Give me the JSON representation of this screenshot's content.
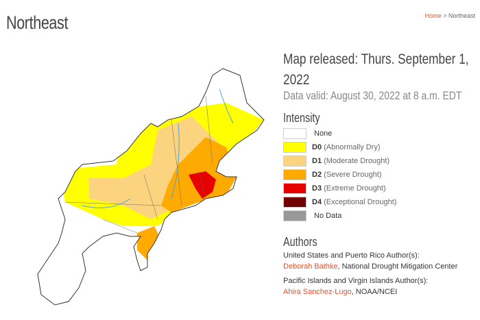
{
  "page_title": "Northeast",
  "breadcrumb": {
    "home": "Home",
    "sep": ">",
    "current": "Northeast"
  },
  "released": "Map released: Thurs. September 1, 2022",
  "valid": "Data valid: August 30, 2022 at 8 a.m. EDT",
  "intensity_heading": "Intensity",
  "legend": [
    {
      "code": "",
      "label": "None",
      "color": "#ffffff"
    },
    {
      "code": "D0",
      "label": "(Abnormally Dry)",
      "color": "#ffff00"
    },
    {
      "code": "D1",
      "label": "(Moderate Drought)",
      "color": "#fcd37f"
    },
    {
      "code": "D2",
      "label": "(Severe Drought)",
      "color": "#ffaa00"
    },
    {
      "code": "D3",
      "label": "(Extreme Drought)",
      "color": "#e60000"
    },
    {
      "code": "D4",
      "label": "(Exceptional Drought)",
      "color": "#730000"
    },
    {
      "code": "",
      "label": "No Data",
      "color": "#999999"
    }
  ],
  "authors_heading": "Authors",
  "authors": [
    {
      "group": "United States and Puerto Rico Author(s):",
      "name": "Deborah Bathke",
      "org": ", National Drought Mitigation Center"
    },
    {
      "group": "Pacific Islands and Virgin Islands Author(s):",
      "name": "Ahira Sanchez-Lugo",
      "org": ", NOAA/NCEI"
    }
  ]
}
